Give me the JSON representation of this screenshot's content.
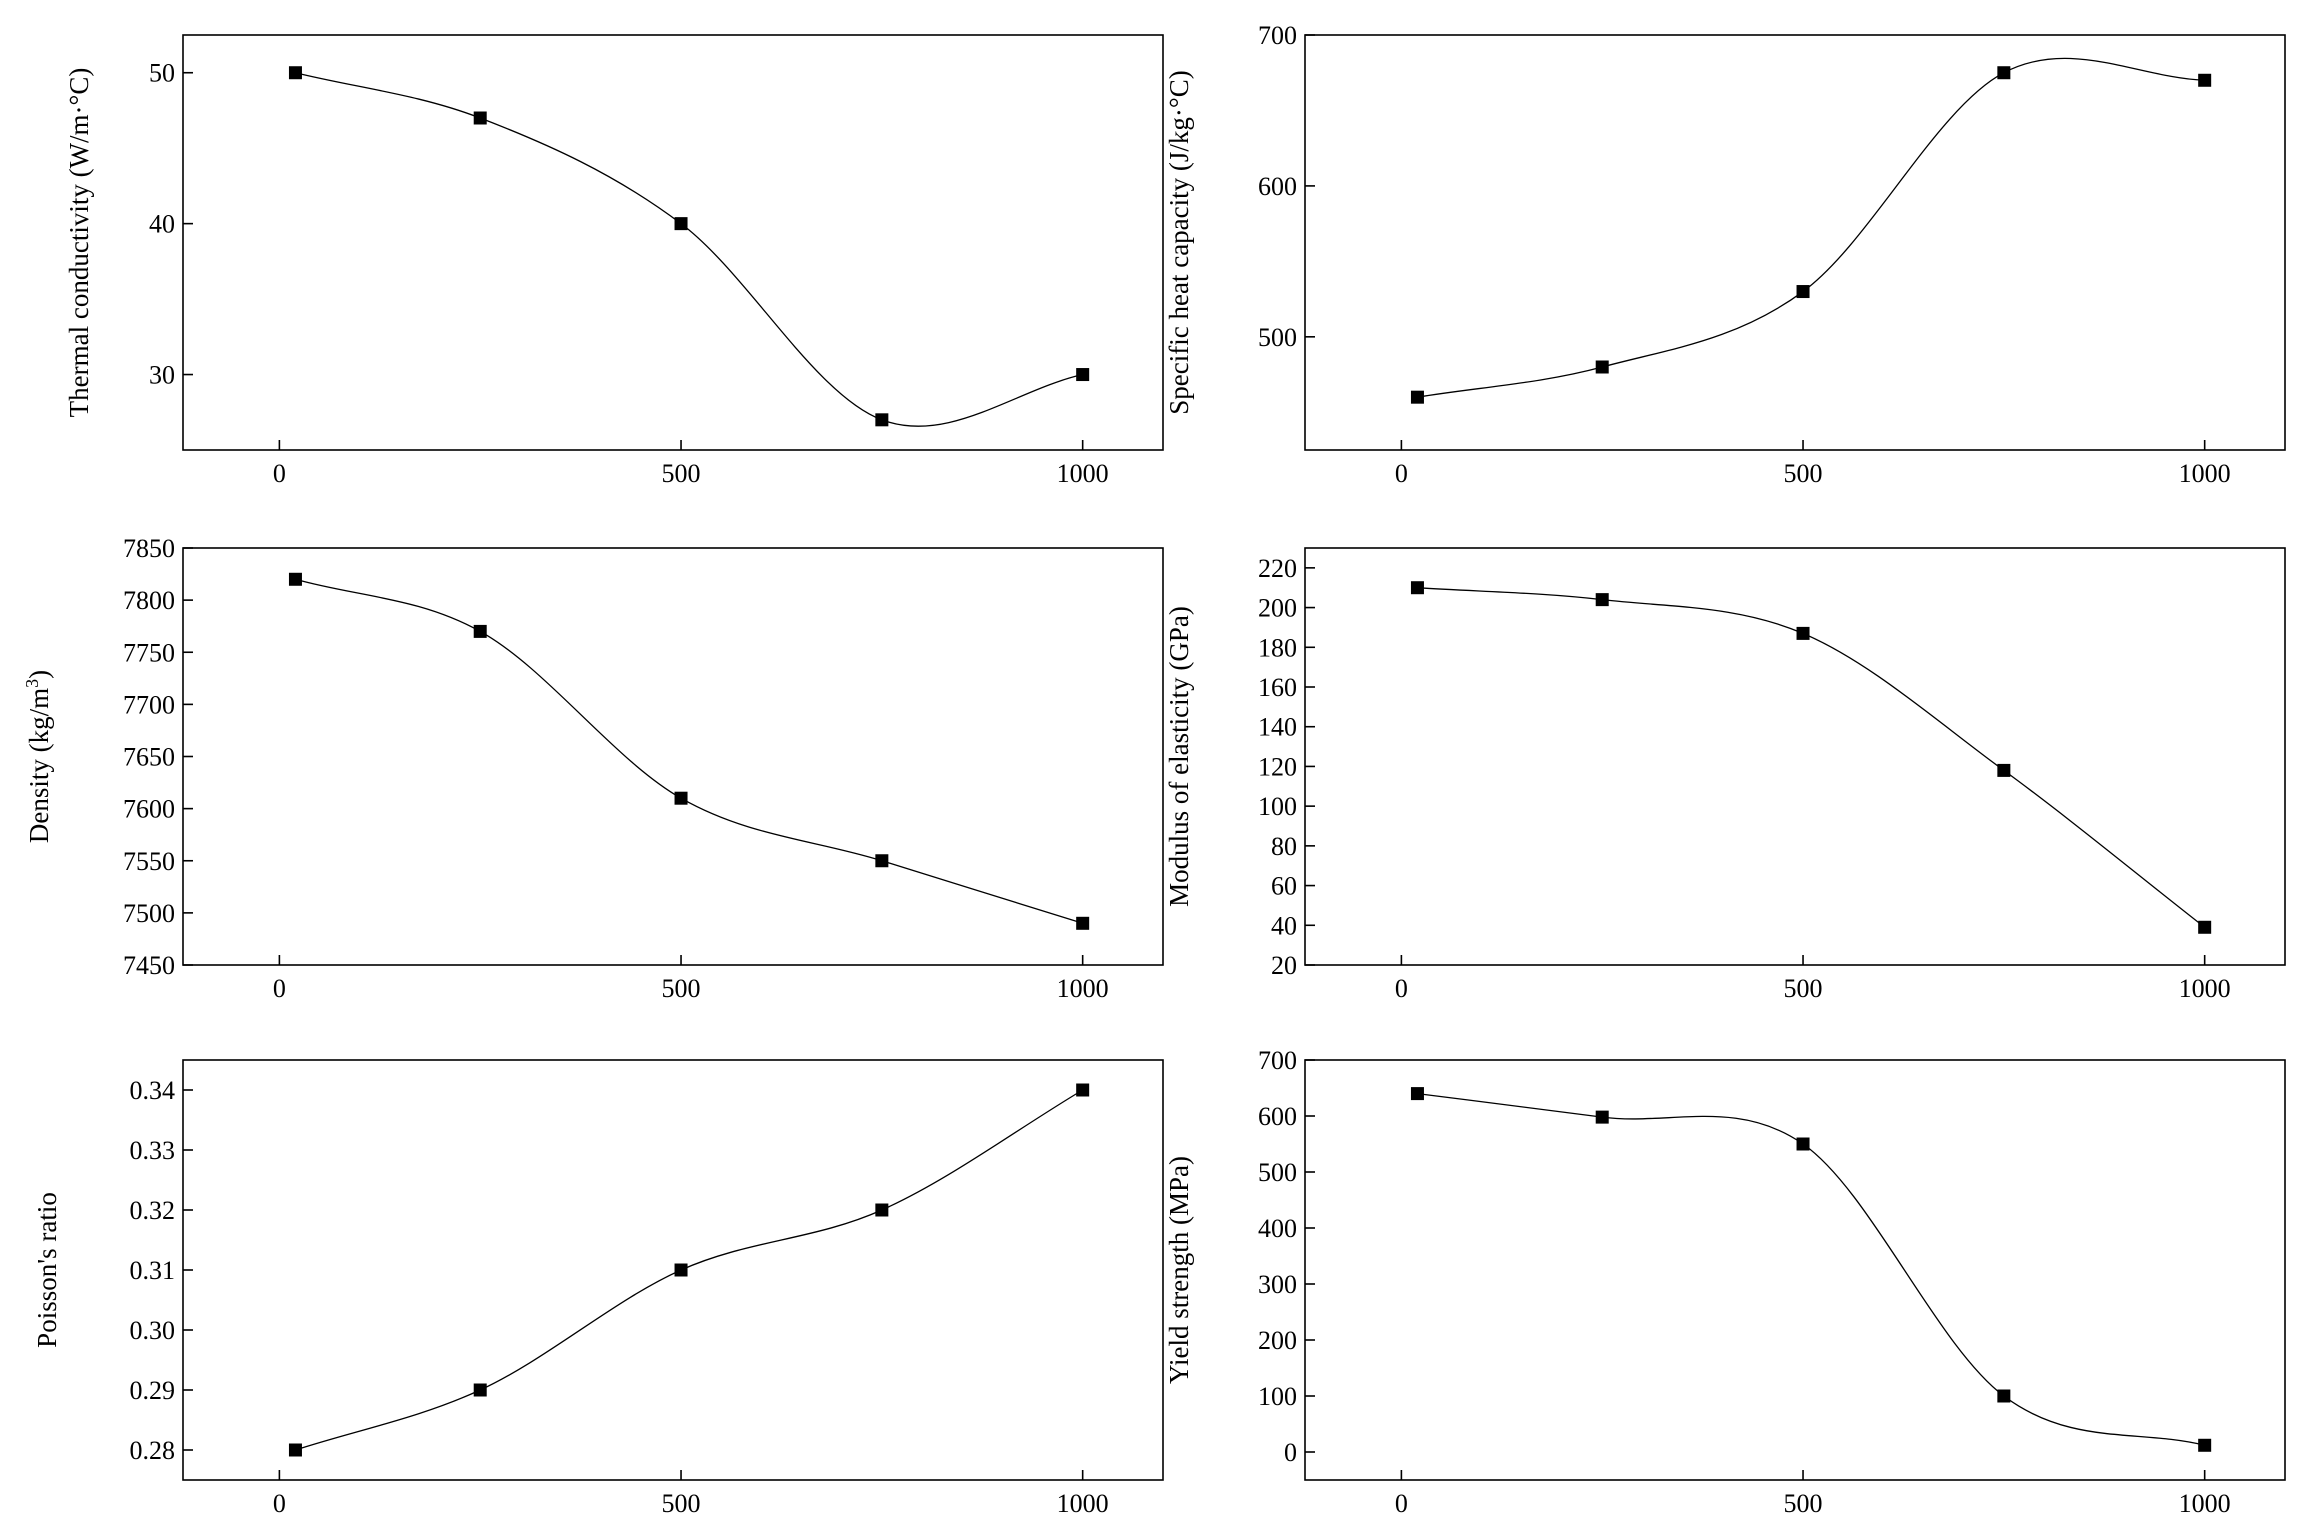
{
  "chart_data": [
    {
      "type": "line",
      "title": "",
      "xlabel": "",
      "ylabel": "Thermal conductivity (W/m·°C)",
      "x": [
        20,
        250,
        500,
        750,
        1000
      ],
      "series": [
        {
          "values": [
            50,
            47,
            40,
            27,
            30
          ]
        }
      ],
      "xlim": [
        -120,
        1100
      ],
      "ylim": [
        25,
        52.5
      ],
      "xticks": [
        0,
        500,
        1000
      ],
      "yticks": [
        30,
        40,
        50
      ],
      "xtick_labels": [
        "0",
        "500",
        "1000"
      ],
      "ytick_labels": [
        "30",
        "40",
        "50"
      ],
      "marker": "square",
      "interpolation": "smooth",
      "grid": false
    },
    {
      "type": "line",
      "title": "",
      "xlabel": "",
      "ylabel": "Specific heat capacity (J/kg·°C)",
      "x": [
        20,
        250,
        500,
        750,
        1000
      ],
      "series": [
        {
          "values": [
            460,
            480,
            530,
            675,
            670
          ]
        }
      ],
      "xlim": [
        -120,
        1100
      ],
      "ylim": [
        425,
        700
      ],
      "xticks": [
        0,
        500,
        1000
      ],
      "yticks": [
        500,
        600,
        700
      ],
      "xtick_labels": [
        "0",
        "500",
        "1000"
      ],
      "ytick_labels": [
        "500",
        "600",
        "700"
      ],
      "marker": "square",
      "interpolation": "smooth",
      "grid": false
    },
    {
      "type": "line",
      "title": "",
      "xlabel": "",
      "ylabel": "Density (kg/m",
      "ylabel_superscript": "3",
      "ylabel_suffix": ")",
      "x": [
        20,
        250,
        500,
        750,
        1000
      ],
      "series": [
        {
          "values": [
            7820,
            7770,
            7610,
            7550,
            7490
          ]
        }
      ],
      "xlim": [
        -120,
        1100
      ],
      "ylim": [
        7450,
        7850
      ],
      "xticks": [
        0,
        500,
        1000
      ],
      "yticks": [
        7450,
        7500,
        7550,
        7600,
        7650,
        7700,
        7750,
        7800,
        7850
      ],
      "xtick_labels": [
        "0",
        "500",
        "1000"
      ],
      "ytick_labels": [
        "7450",
        "7500",
        "7550",
        "7600",
        "7650",
        "7700",
        "7750",
        "7800",
        "7850"
      ],
      "marker": "square",
      "interpolation": "smooth",
      "grid": false
    },
    {
      "type": "line",
      "title": "",
      "xlabel": "",
      "ylabel": "Modulus of elasticity (GPa)",
      "x": [
        20,
        250,
        500,
        750,
        1000
      ],
      "series": [
        {
          "values": [
            210,
            204,
            187,
            118,
            39
          ]
        }
      ],
      "xlim": [
        -120,
        1100
      ],
      "ylim": [
        20,
        230
      ],
      "xticks": [
        0,
        500,
        1000
      ],
      "yticks": [
        20,
        40,
        60,
        80,
        100,
        120,
        140,
        160,
        180,
        200,
        220
      ],
      "xtick_labels": [
        "0",
        "500",
        "1000"
      ],
      "ytick_labels": [
        "20",
        "40",
        "60",
        "80",
        "100",
        "120",
        "140",
        "160",
        "180",
        "200",
        "220"
      ],
      "marker": "square",
      "interpolation": "smooth",
      "grid": false
    },
    {
      "type": "line",
      "title": "",
      "xlabel": "",
      "ylabel": "Poisson's ratio",
      "x": [
        20,
        250,
        500,
        750,
        1000
      ],
      "series": [
        {
          "values": [
            0.28,
            0.29,
            0.31,
            0.32,
            0.34
          ]
        }
      ],
      "xlim": [
        -120,
        1100
      ],
      "ylim": [
        0.275,
        0.345
      ],
      "xticks": [
        0,
        500,
        1000
      ],
      "yticks": [
        0.28,
        0.29,
        0.3,
        0.31,
        0.32,
        0.33,
        0.34
      ],
      "xtick_labels": [
        "0",
        "500",
        "1000"
      ],
      "ytick_labels": [
        "0.28",
        "0.29",
        "0.30",
        "0.31",
        "0.32",
        "0.33",
        "0.34"
      ],
      "marker": "square",
      "interpolation": "smooth",
      "grid": false
    },
    {
      "type": "line",
      "title": "",
      "xlabel": "",
      "ylabel": "Yield strength (MPa)",
      "x": [
        20,
        250,
        500,
        750,
        1000
      ],
      "series": [
        {
          "values": [
            640,
            598,
            550,
            100,
            12
          ]
        }
      ],
      "xlim": [
        -120,
        1100
      ],
      "ylim": [
        -50,
        700
      ],
      "xticks": [
        0,
        500,
        1000
      ],
      "yticks": [
        0,
        100,
        200,
        300,
        400,
        500,
        600,
        700
      ],
      "xtick_labels": [
        "0",
        "500",
        "1000"
      ],
      "ytick_labels": [
        "0",
        "100",
        "200",
        "300",
        "400",
        "500",
        "600",
        "700"
      ],
      "marker": "square",
      "interpolation": "smooth",
      "grid": false
    }
  ],
  "style": {
    "line_color": "#000000",
    "marker_color": "#000000",
    "axis_color": "#000000",
    "background": "#ffffff"
  }
}
